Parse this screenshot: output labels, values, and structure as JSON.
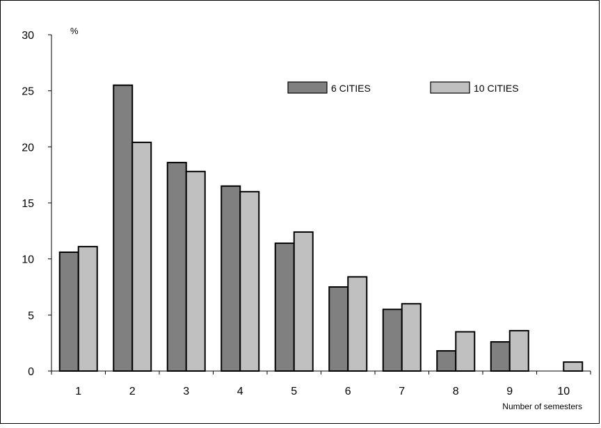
{
  "chart_data": {
    "type": "bar",
    "categories": [
      "1",
      "2",
      "3",
      "4",
      "5",
      "6",
      "7",
      "8",
      "9",
      "10"
    ],
    "series": [
      {
        "name": "6 CITIES",
        "values": [
          10.6,
          25.5,
          18.6,
          16.5,
          11.4,
          7.5,
          5.5,
          1.8,
          2.6,
          0
        ],
        "color": "#808080"
      },
      {
        "name": "10 CITIES",
        "values": [
          11.1,
          20.4,
          17.8,
          16.0,
          12.4,
          8.4,
          6.0,
          3.5,
          3.6,
          0.8
        ],
        "color": "#c0c0c0"
      }
    ],
    "y_unit": "%",
    "xlabel": "Number of semesters",
    "ylim": [
      0,
      30
    ],
    "yticks": [
      "0",
      "5",
      "10",
      "15",
      "20",
      "25",
      "30"
    ],
    "grid": false,
    "legend_position": "top-right"
  }
}
